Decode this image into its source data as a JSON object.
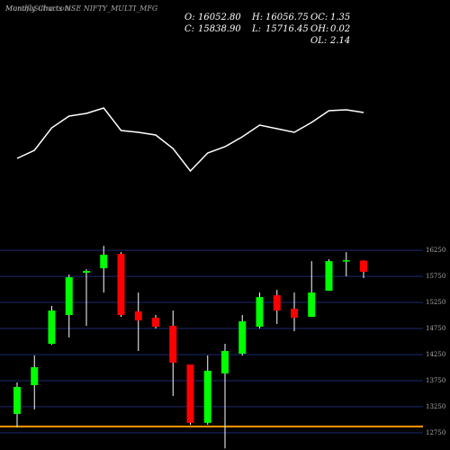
{
  "site": "MunafaSutra.com",
  "chart_data": [
    {
      "type": "line",
      "title": "Monthly Charts NSE NIFTY_MULTI_MFG",
      "ylim": [
        0,
        100
      ],
      "color": "#ffffff",
      "values": [
        24,
        33,
        58,
        71,
        74,
        80,
        55,
        53,
        50,
        35,
        10,
        30,
        37,
        48,
        61,
        57,
        53,
        64,
        77,
        78,
        75
      ]
    },
    {
      "type": "candlestick",
      "stats": [
        {
          "label": "O:",
          "value": "16052.80"
        },
        {
          "label": "H:",
          "value": "16056.75"
        },
        {
          "label": "OC:",
          "value": "1.35"
        },
        {
          "label": "C:",
          "value": "15838.90"
        },
        {
          "label": "L:",
          "value": "15716.45"
        },
        {
          "label": "OH:",
          "value": "0.02"
        },
        {
          "label": "OL:",
          "value": "2.14"
        }
      ],
      "ylim": [
        12420,
        16390
      ],
      "yticks": [
        12750,
        13250,
        13750,
        14250,
        14750,
        15250,
        15750,
        16250
      ],
      "grid": true,
      "up_color": "#00ff00",
      "down_color": "#ff0000",
      "support_line": 12870,
      "support_color": "#ff9900",
      "open": [
        13112,
        13664,
        14457,
        15009,
        15819,
        15905,
        16181,
        15078,
        14957,
        14802,
        14060,
        12940,
        13888,
        14267,
        14784,
        15388,
        15129,
        14974,
        15474,
        16043,
        16052.8
      ],
      "high": [
        13716,
        14233,
        15181,
        15784,
        15888,
        16336,
        16215,
        15440,
        15009,
        15095,
        14060,
        14233,
        14457,
        15009,
        15440,
        15491,
        15440,
        16043,
        16078,
        16215,
        16056.75
      ],
      "low": [
        12853,
        13198,
        14440,
        14578,
        14802,
        15440,
        14974,
        14319,
        14750,
        13457,
        12905,
        12905,
        12450,
        14233,
        14750,
        14836,
        14698,
        14974,
        15474,
        15750,
        15716.45
      ],
      "close": [
        13629,
        14009,
        15095,
        15733,
        15853,
        16164,
        15009,
        14905,
        14784,
        14095,
        12940,
        13940,
        14319,
        14888,
        15353,
        15095,
        14957,
        15440,
        16043,
        16060,
        15838.9
      ]
    }
  ]
}
